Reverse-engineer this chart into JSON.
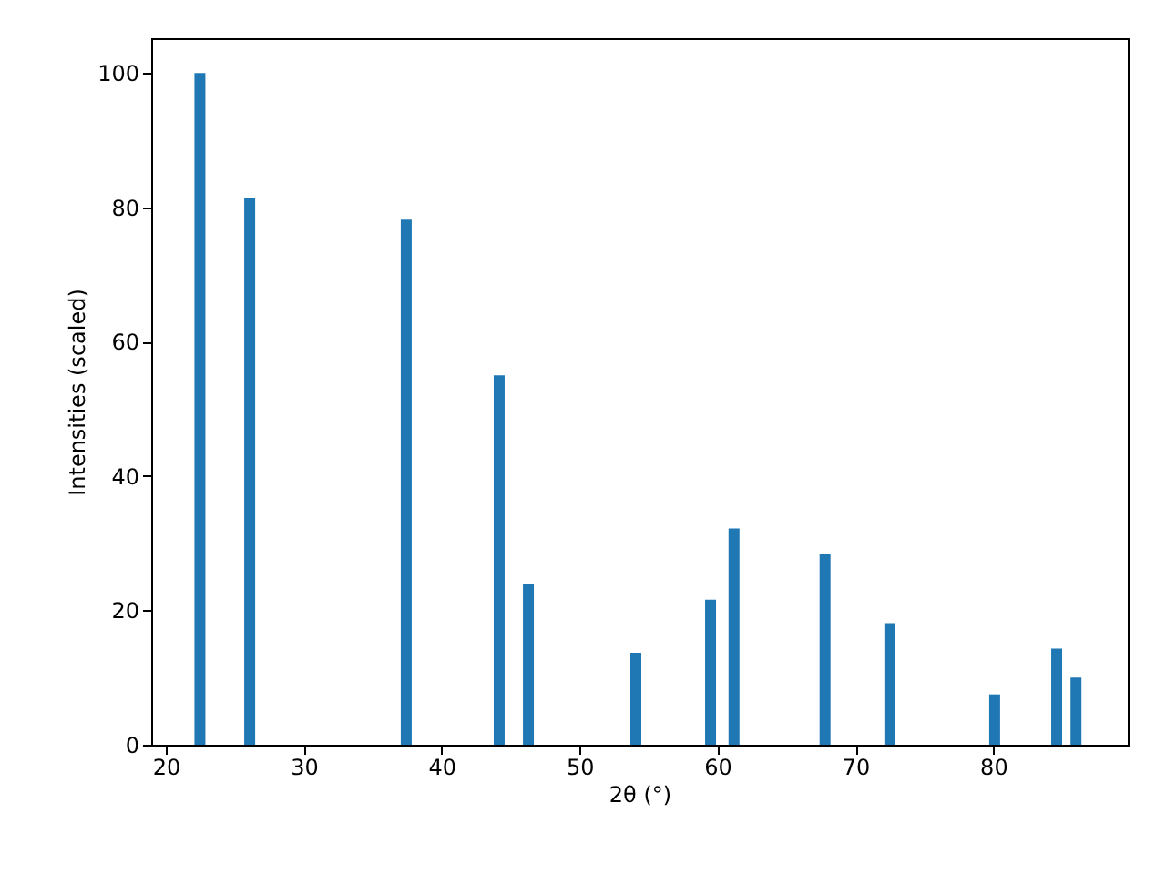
{
  "chart_data": {
    "type": "bar",
    "x": [
      22.47,
      26.08,
      37.43,
      44.17,
      46.29,
      54.08,
      59.5,
      61.2,
      67.8,
      72.5,
      80.1,
      84.6,
      86.0
    ],
    "values": [
      100,
      81.4,
      78.2,
      55.0,
      24.0,
      13.7,
      21.6,
      32.2,
      28.4,
      18.1,
      7.5,
      14.3,
      10.0
    ],
    "color": "#1f77b4",
    "xlabel": "2θ (°)",
    "ylabel": "Intensities (scaled)",
    "xlim": [
      18.94,
      89.75
    ],
    "xticks": [
      20,
      30,
      40,
      50,
      60,
      70,
      80
    ],
    "ylim": [
      0,
      105.2
    ],
    "yticks": [
      0,
      20,
      40,
      60,
      80,
      100
    ],
    "grid": false
  }
}
